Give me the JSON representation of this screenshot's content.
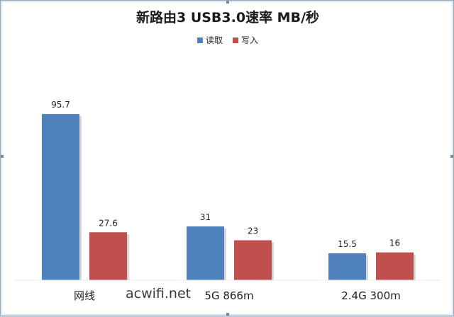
{
  "chart_data": {
    "type": "bar",
    "title": "新路由3 USB3.0速率 MB/秒",
    "categories": [
      "网线",
      "5G 866m",
      "2.4G 300m"
    ],
    "series": [
      {
        "name": "读取",
        "color": "#4f81bd",
        "values": [
          95.7,
          31,
          15.5
        ]
      },
      {
        "name": "写入",
        "color": "#c0504d",
        "values": [
          27.6,
          23,
          16
        ]
      }
    ],
    "data_labels": [
      [
        "95.7",
        "31",
        "15.5"
      ],
      [
        "27.6",
        "23",
        "16"
      ]
    ],
    "ylim": [
      0,
      110
    ],
    "grid": false,
    "legend_position": "top-center"
  },
  "watermark": "acwifi.net"
}
